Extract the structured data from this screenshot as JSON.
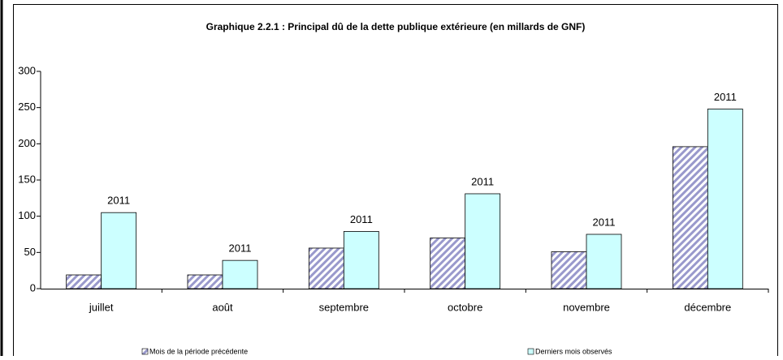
{
  "chart_data": {
    "type": "bar",
    "title": "Graphique 2.2.1 : Principal dû de la dette publique extérieure (en millards de GNF)",
    "categories": [
      "juillet",
      "août",
      "septembre",
      "octobre",
      "novembre",
      "décembre"
    ],
    "series": [
      {
        "name": "Mois de la période précédente",
        "color": "#9999ff",
        "values": [
          19,
          19,
          56,
          70,
          51,
          196
        ]
      },
      {
        "name": "Derniers mois observés",
        "color": "#ccffff",
        "values": [
          105,
          39,
          79,
          131,
          75,
          248
        ]
      }
    ],
    "annotations": [
      "2011",
      "2011",
      "2011",
      "2011",
      "2011",
      "2011"
    ],
    "ylim": [
      0,
      300
    ],
    "yticks": [
      0,
      50,
      100,
      150,
      200,
      250,
      300
    ],
    "grid": false,
    "legend": "bottom"
  }
}
